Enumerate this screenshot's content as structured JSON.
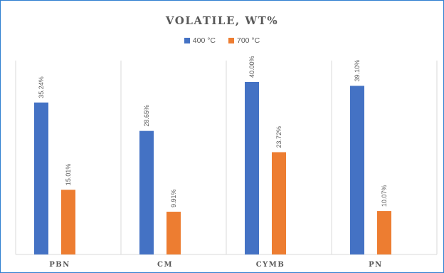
{
  "colors": {
    "frame_border": "#2f7fd0",
    "series_400": "#4472c4",
    "series_700": "#ed7d31",
    "gridline": "#d9d9d9",
    "text": "#595959"
  },
  "chart_data": {
    "type": "bar",
    "title": "VOLATILE, WT%",
    "categories": [
      "PBN",
      "CM",
      "CYMB",
      "PN"
    ],
    "series": [
      {
        "name": "400 °C",
        "values": [
          35.24,
          28.65,
          40.0,
          39.1
        ],
        "labels": [
          "35.24%",
          "28.65%",
          "40.00%",
          "39.10%"
        ]
      },
      {
        "name": "700 °C",
        "values": [
          15.01,
          9.91,
          23.72,
          10.07
        ],
        "labels": [
          "15.01%",
          "9.91%",
          "23.72%",
          "10.07%"
        ]
      }
    ],
    "xlabel": "",
    "ylabel": "",
    "ylim": [
      0,
      40
    ],
    "legend_position": "top",
    "grid": false
  }
}
